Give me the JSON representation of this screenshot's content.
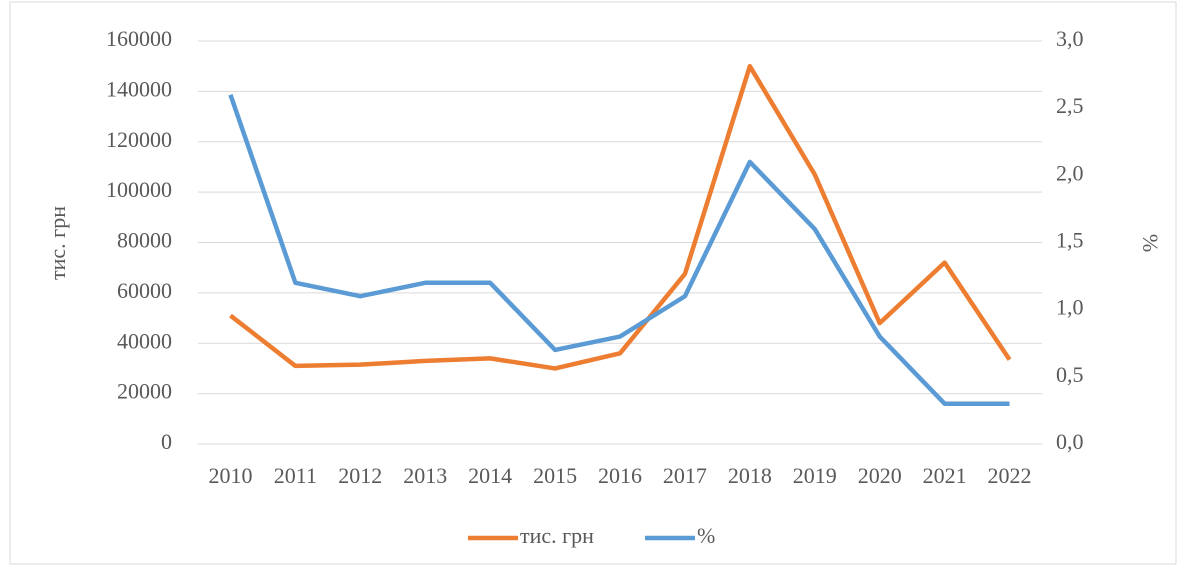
{
  "chart_data": {
    "type": "line",
    "categories": [
      "2010",
      "2011",
      "2012",
      "2013",
      "2014",
      "2015",
      "2016",
      "2017",
      "2018",
      "2019",
      "2020",
      "2021",
      "2022"
    ],
    "y_label": "тис. грн",
    "y2_label": "%",
    "series": [
      {
        "name": "тис. грн",
        "color": "#ed7d31",
        "values": [
          51000,
          31000,
          31500,
          33000,
          34000,
          30000,
          36000,
          67500,
          150000,
          107000,
          48000,
          72000,
          33500
        ]
      },
      {
        "name": "%",
        "color": "#5b9bd5",
        "axis": "y2",
        "values": [
          2.6,
          1.2,
          1.1,
          1.2,
          1.2,
          0.7,
          0.8,
          1.1,
          2.1,
          1.6,
          0.8,
          0.3,
          0.3
        ]
      }
    ],
    "ylim": [
      0,
      160000
    ],
    "yticks": [
      0,
      20000,
      40000,
      60000,
      80000,
      100000,
      120000,
      140000,
      160000
    ],
    "y2lim": [
      0,
      3
    ],
    "y2ticks": [
      {
        "value": 0,
        "label": "0,0"
      },
      {
        "value": 0.5,
        "label": "0,5"
      },
      {
        "value": 1,
        "label": "1,0"
      },
      {
        "value": 1.5,
        "label": "1,5"
      },
      {
        "value": 2,
        "label": "2,0"
      },
      {
        "value": 2.5,
        "label": "2,5"
      },
      {
        "value": 3,
        "label": "3,0"
      }
    ],
    "grid": true,
    "legend": "bottom"
  }
}
